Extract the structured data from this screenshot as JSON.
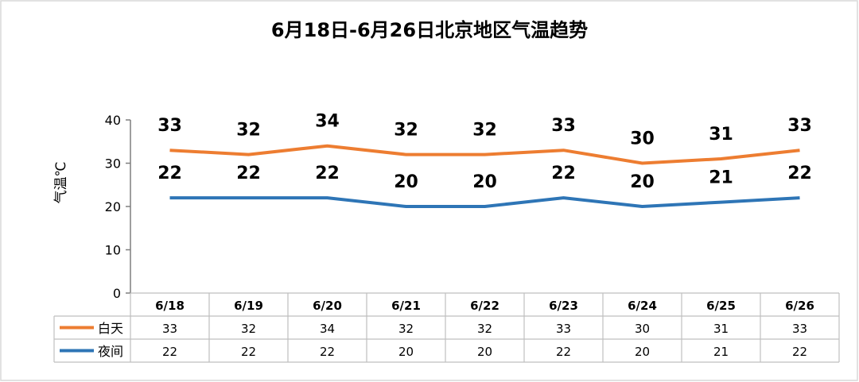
{
  "chart_data": {
    "type": "line",
    "title": "6月18日-6月26日北京地区气温趋势",
    "ylabel": "气温℃",
    "xlabel": "",
    "ylim": [
      0,
      40
    ],
    "yticks": [
      "0",
      "10",
      "20",
      "30",
      "40"
    ],
    "grid": false,
    "legend": "data-table-below",
    "categories": [
      "6/18",
      "6/19",
      "6/20",
      "6/21",
      "6/22",
      "6/23",
      "6/24",
      "6/25",
      "6/26"
    ],
    "series": [
      {
        "name": "白天",
        "color": "#ed7d31",
        "values": [
          33,
          32,
          34,
          32,
          32,
          33,
          30,
          31,
          33
        ]
      },
      {
        "name": "夜间",
        "color": "#2e75b6",
        "values": [
          22,
          22,
          22,
          20,
          20,
          22,
          20,
          21,
          22
        ]
      }
    ]
  }
}
